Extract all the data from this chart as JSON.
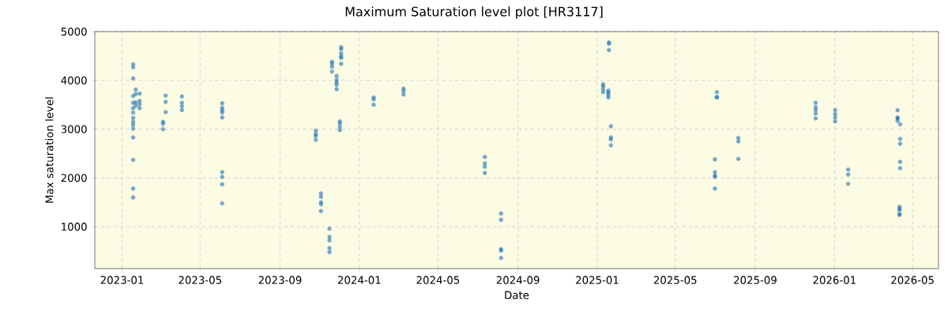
{
  "chart_data": {
    "type": "scatter",
    "title": "Maximum Saturation level plot [HR3117]",
    "xlabel": "Date",
    "ylabel": "Max saturation level",
    "xlim": [
      "2022-11-20",
      "2026-06-10"
    ],
    "ylim": [
      140,
      5000
    ],
    "xticks": [
      "2023-01",
      "2023-05",
      "2023-09",
      "2024-01",
      "2024-05",
      "2024-09",
      "2025-01",
      "2025-05",
      "2025-09",
      "2026-01",
      "2026-05"
    ],
    "yticks": [
      1000,
      2000,
      3000,
      4000,
      5000
    ],
    "grid": true,
    "marker": "circle",
    "series": [
      {
        "color": "#1f77b4",
        "x": [
          "2023-01-18",
          "2023-01-18",
          "2023-01-18",
          "2023-01-18",
          "2023-01-18",
          "2023-01-18",
          "2023-01-18",
          "2023-01-18",
          "2023-01-18",
          "2023-01-18",
          "2023-01-18",
          "2023-01-18",
          "2023-01-18",
          "2023-01-18",
          "2023-01-18",
          "2023-01-22",
          "2023-01-22",
          "2023-01-22",
          "2023-01-22",
          "2023-01-28",
          "2023-01-28",
          "2023-01-28",
          "2023-01-28",
          "2023-03-05",
          "2023-03-05",
          "2023-03-05",
          "2023-03-09",
          "2023-03-09",
          "2023-03-09",
          "2023-04-03",
          "2023-04-03",
          "2023-04-03",
          "2023-04-03",
          "2023-06-04",
          "2023-06-04",
          "2023-06-04",
          "2023-06-04",
          "2023-06-04",
          "2023-06-04",
          "2023-06-04",
          "2023-06-04",
          "2023-06-04",
          "2023-10-26",
          "2023-10-26",
          "2023-10-26",
          "2023-10-26",
          "2023-11-03",
          "2023-11-03",
          "2023-11-03",
          "2023-11-03",
          "2023-11-03",
          "2023-11-16",
          "2023-11-16",
          "2023-11-16",
          "2023-11-16",
          "2023-11-16",
          "2023-11-20",
          "2023-11-20",
          "2023-11-20",
          "2023-11-20",
          "2023-11-27",
          "2023-11-27",
          "2023-11-27",
          "2023-11-27",
          "2023-11-27",
          "2023-12-02",
          "2023-12-02",
          "2023-12-02",
          "2023-12-02",
          "2023-12-04",
          "2023-12-04",
          "2023-12-04",
          "2023-12-04",
          "2023-12-04",
          "2023-12-04",
          "2024-01-23",
          "2024-01-23",
          "2024-01-23",
          "2024-03-09",
          "2024-03-09",
          "2024-03-09",
          "2024-07-12",
          "2024-07-12",
          "2024-07-12",
          "2024-07-12",
          "2024-08-06",
          "2024-08-06",
          "2024-08-06",
          "2024-08-06",
          "2024-08-06",
          "2025-01-10",
          "2025-01-10",
          "2025-01-10",
          "2025-01-10",
          "2025-01-18",
          "2025-01-18",
          "2025-01-18",
          "2025-01-18",
          "2025-01-19",
          "2025-01-19",
          "2025-01-19",
          "2025-01-22",
          "2025-01-22",
          "2025-01-22",
          "2025-01-22",
          "2025-07-04",
          "2025-07-04",
          "2025-07-04",
          "2025-07-01",
          "2025-07-01",
          "2025-07-01",
          "2025-07-01",
          "2025-07-01",
          "2025-08-06",
          "2025-08-06",
          "2025-08-06",
          "2025-12-03",
          "2025-12-03",
          "2025-12-03",
          "2025-12-03",
          "2025-12-03",
          "2026-01-02",
          "2026-01-02",
          "2026-01-02",
          "2026-01-02",
          "2026-01-22",
          "2026-01-22",
          "2026-01-22",
          "2026-04-08",
          "2026-04-08",
          "2026-04-08",
          "2026-04-08",
          "2026-04-12",
          "2026-04-12",
          "2026-04-12",
          "2026-04-12",
          "2026-04-12",
          "2026-04-11",
          "2026-04-11",
          "2026-04-11",
          "2026-04-11",
          "2026-04-11"
        ],
        "values": [
          4330,
          4270,
          4040,
          3680,
          3540,
          3430,
          3340,
          3230,
          3150,
          3090,
          3010,
          2830,
          2370,
          1780,
          1600,
          3810,
          3720,
          3550,
          3480,
          3730,
          3580,
          3510,
          3430,
          3150,
          3110,
          3000,
          3690,
          3560,
          3350,
          3670,
          3540,
          3470,
          3390,
          3530,
          3440,
          3390,
          3340,
          3240,
          2120,
          2020,
          1870,
          1480,
          2970,
          2900,
          2860,
          2780,
          1680,
          1610,
          1500,
          1460,
          1320,
          960,
          790,
          720,
          560,
          480,
          4380,
          4340,
          4280,
          4180,
          4090,
          4010,
          3960,
          3910,
          3820,
          3160,
          3120,
          3050,
          2980,
          4680,
          4640,
          4550,
          4490,
          4460,
          4340,
          3650,
          3610,
          3500,
          3830,
          3780,
          3710,
          2430,
          2300,
          2230,
          2100,
          1270,
          1140,
          540,
          510,
          360,
          3920,
          3880,
          3820,
          3760,
          3790,
          3750,
          3700,
          3650,
          4780,
          4750,
          4620,
          3060,
          2830,
          2790,
          2670,
          3760,
          3660,
          3650,
          2380,
          2120,
          2050,
          2020,
          1780,
          2820,
          2750,
          2390,
          3540,
          3450,
          3390,
          3320,
          3220,
          3390,
          3310,
          3240,
          3160,
          2170,
          2070,
          1880,
          3390,
          3240,
          3220,
          3170,
          3100,
          2800,
          2700,
          2330,
          2200,
          1410,
          1370,
          1340,
          1260,
          1240
        ]
      }
    ]
  }
}
